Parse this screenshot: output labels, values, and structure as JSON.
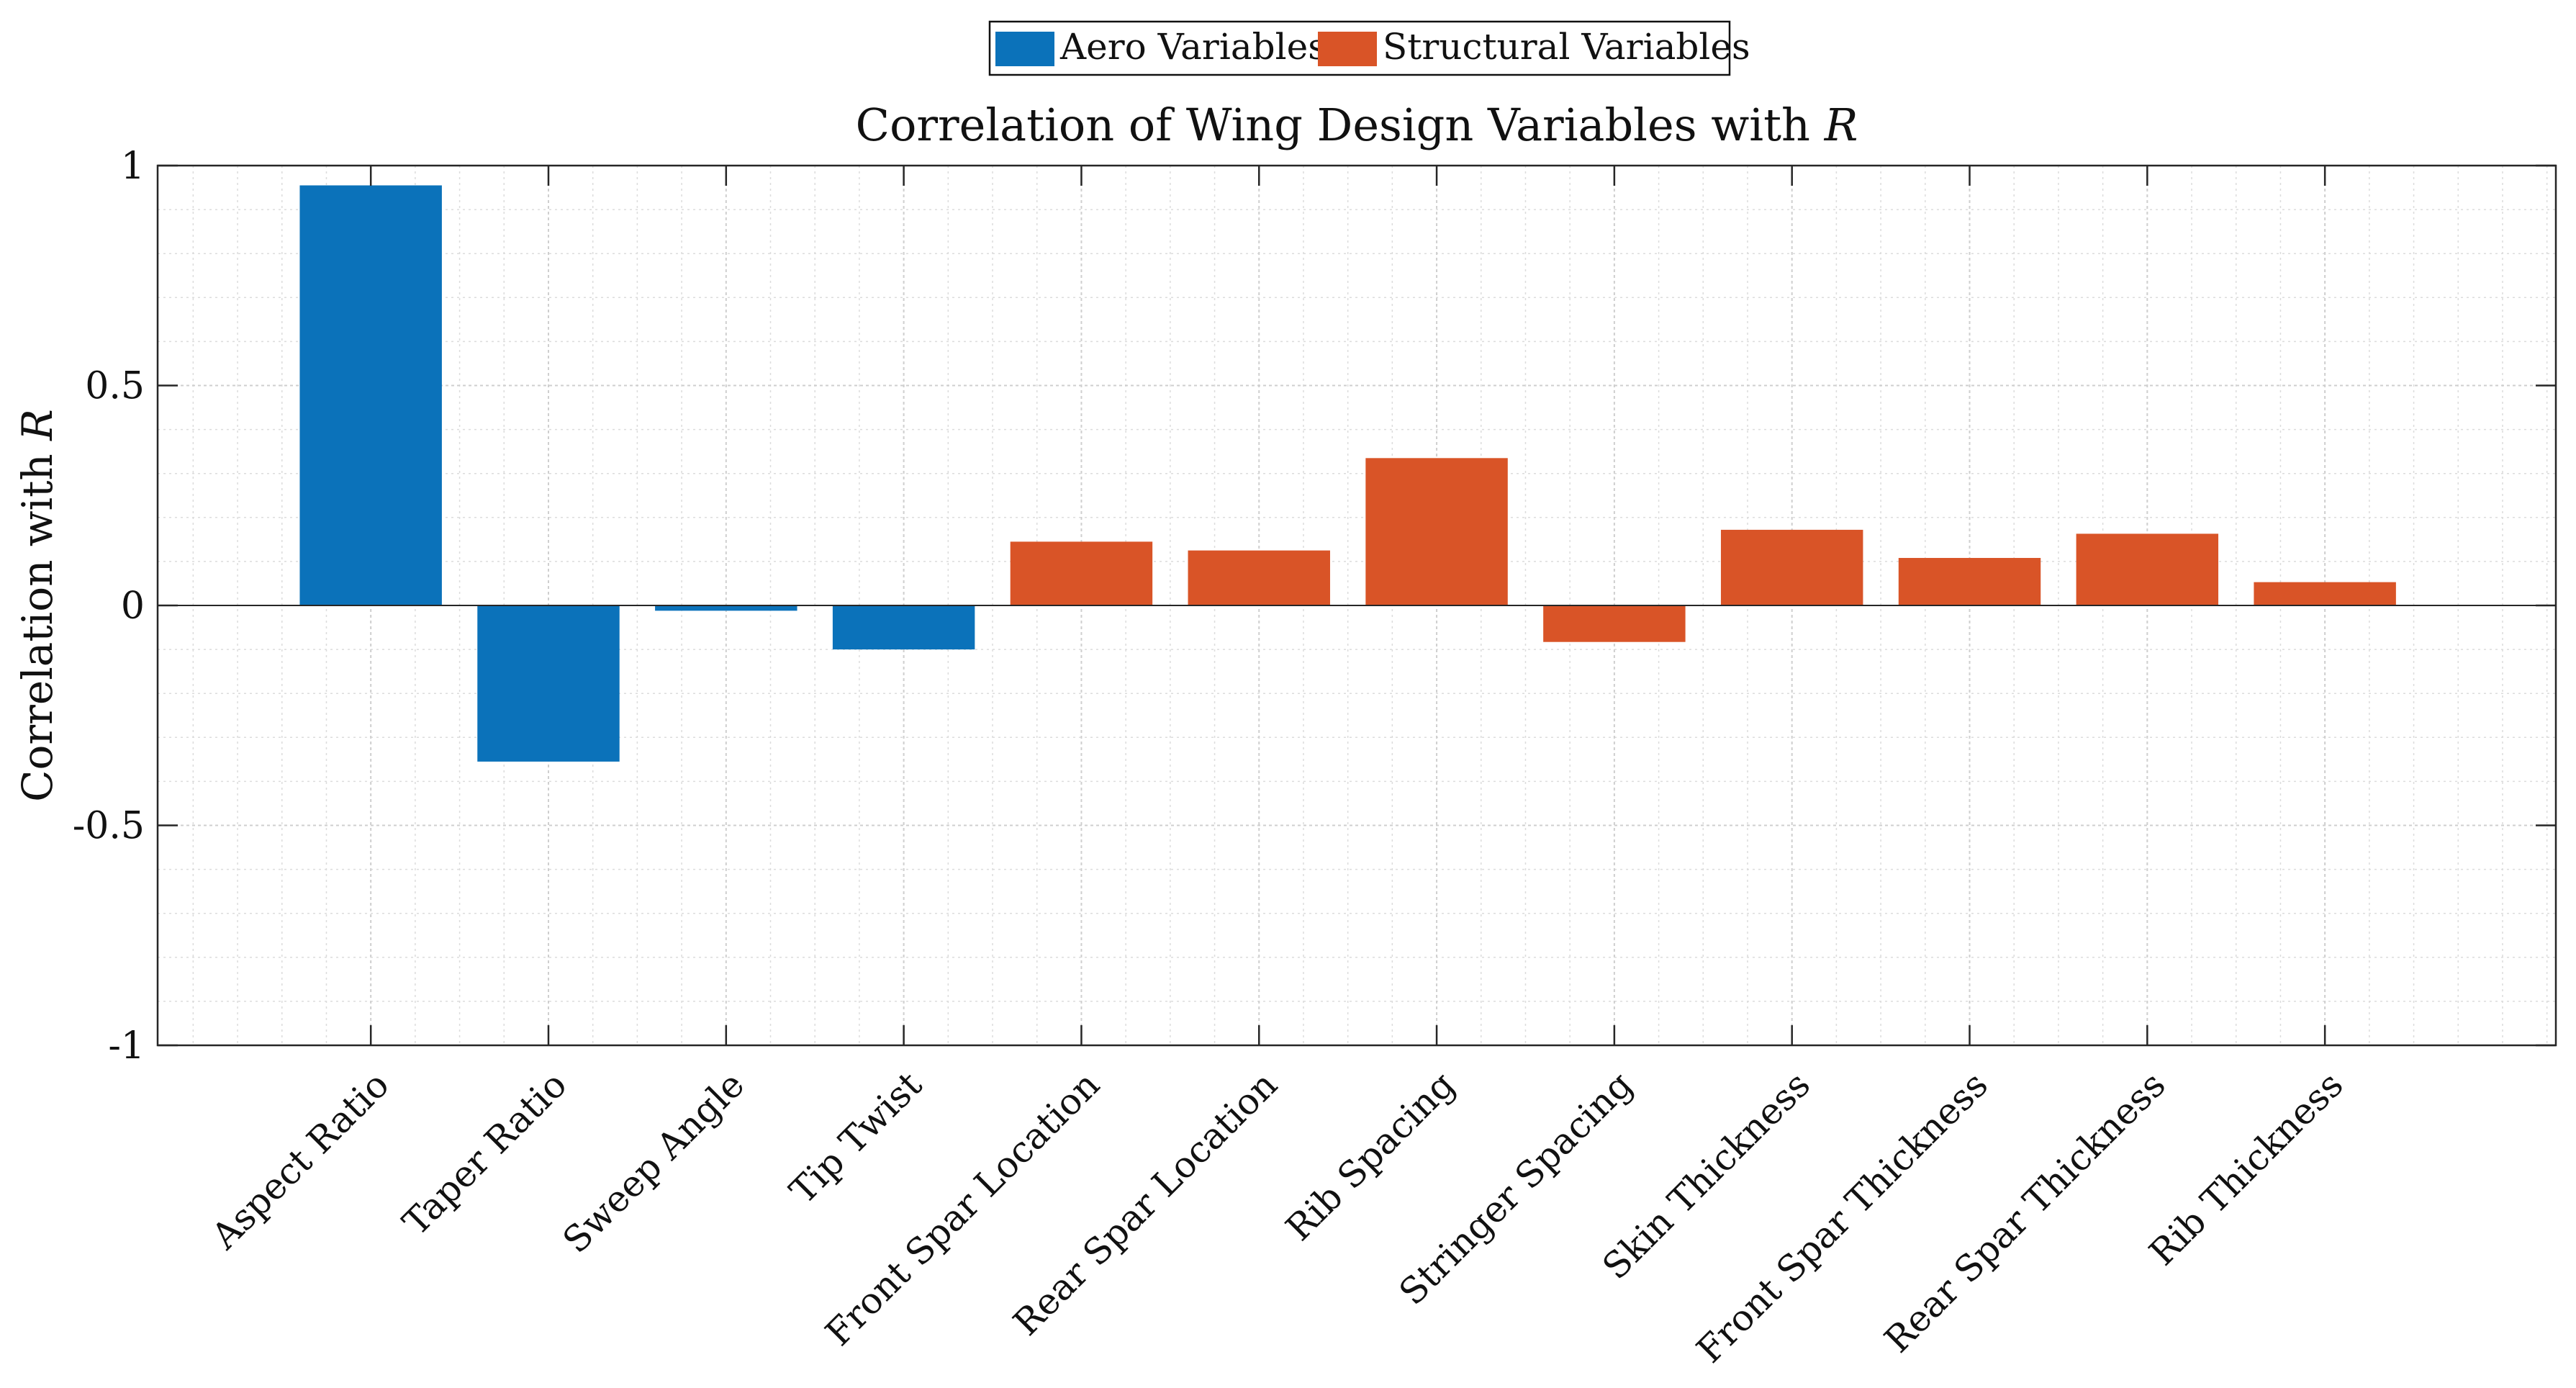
{
  "chart_data": {
    "type": "bar",
    "title": "Correlation of Wing Design Variables with ",
    "title_var": "R",
    "ylabel": "Correlation with ",
    "ylabel_var": "R",
    "xlabel": "",
    "ylim": [
      -1,
      1
    ],
    "yticks": [
      -1,
      -0.5,
      0,
      0.5,
      1
    ],
    "ytick_labels": [
      "-1",
      "-0.5",
      "0",
      "0.5",
      "1"
    ],
    "grid": true,
    "minor_grid": true,
    "legend_placement": "top-center",
    "legend": [
      {
        "label": "Aero Variables",
        "color": "#0b72ba"
      },
      {
        "label": "Structural Variables",
        "color": "#d95427"
      }
    ],
    "categories": [
      "Aspect Ratio",
      "Taper Ratio",
      "Sweep Angle",
      "Tip Twist",
      "Front Spar Location",
      "Rear Spar Location",
      "Rib Spacing",
      "Stringer Spacing",
      "Skin Thickness",
      "Front Spar Thickness",
      "Rear Spar Thickness",
      "Rib Thickness"
    ],
    "values": [
      0.955,
      -0.355,
      -0.012,
      -0.1,
      0.145,
      0.125,
      0.335,
      -0.083,
      0.172,
      0.108,
      0.163,
      0.053
    ],
    "groups": [
      "aero",
      "aero",
      "aero",
      "aero",
      "structural",
      "structural",
      "structural",
      "structural",
      "structural",
      "structural",
      "structural",
      "structural"
    ],
    "colors": {
      "aero": "#0b72ba",
      "structural": "#d95427",
      "axis": "#262626",
      "grid": "#dcdcdc"
    }
  }
}
